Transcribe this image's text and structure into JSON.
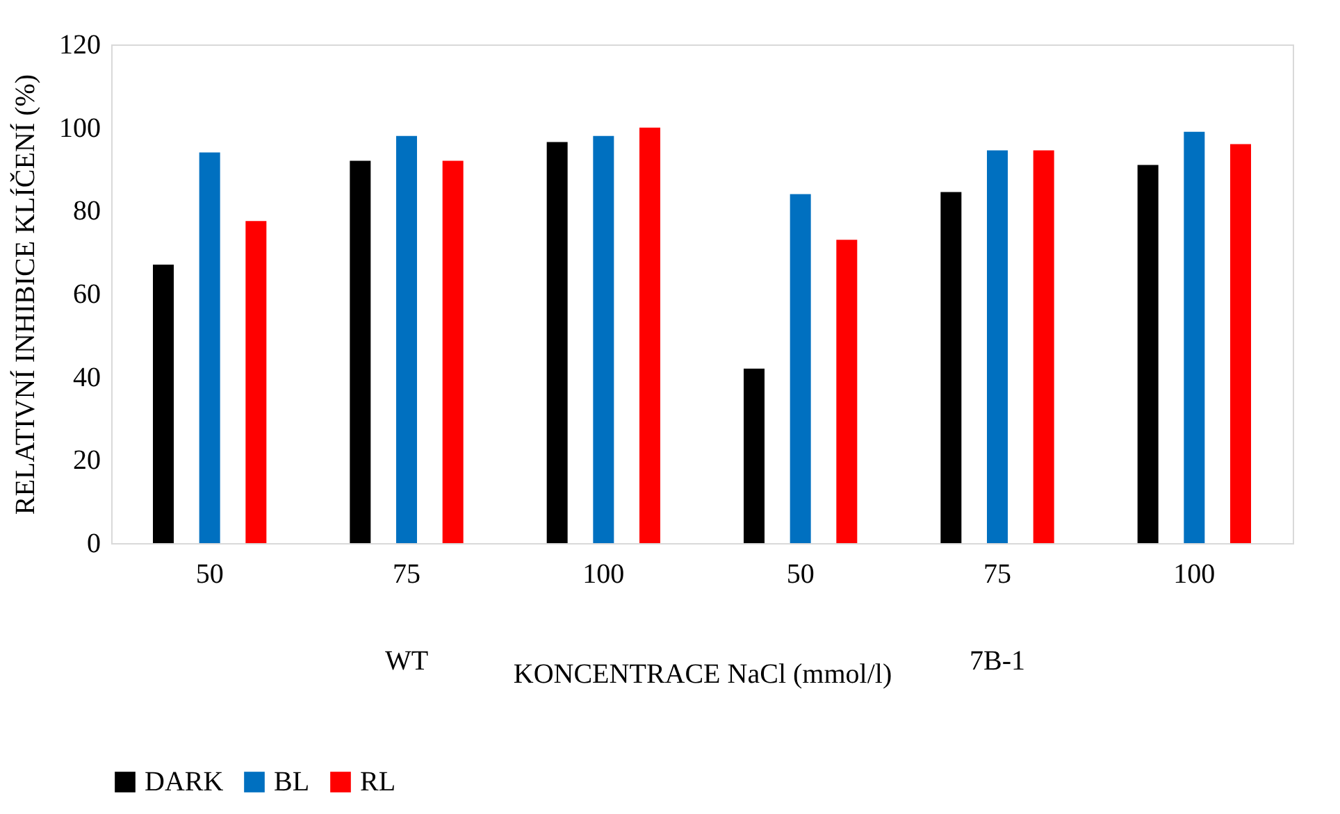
{
  "chart_data": {
    "type": "bar",
    "xlabel": "KONCENTRACE NaCl (mmol/l)",
    "ylabel": "RELATIVNÍ INHIBICE KLÍČENÍ (%)",
    "categories": [
      "50",
      "75",
      "100",
      "50",
      "75",
      "100"
    ],
    "annotations": [
      "WT",
      "7B-1"
    ],
    "series": [
      {
        "name": "DARK",
        "color": "#000000",
        "values": [
          67,
          92,
          96.5,
          42,
          84.5,
          91
        ]
      },
      {
        "name": "BL",
        "color": "#0070c0",
        "values": [
          94,
          98,
          98,
          84,
          94.5,
          99
        ]
      },
      {
        "name": "RL",
        "color": "#ff0000",
        "values": [
          77.5,
          92,
          100,
          73,
          94.5,
          96
        ]
      }
    ],
    "ylim": [
      0,
      120
    ],
    "yticks": [
      0,
      20,
      40,
      60,
      80,
      100,
      120
    ],
    "grid": false,
    "legend": "bottom"
  }
}
